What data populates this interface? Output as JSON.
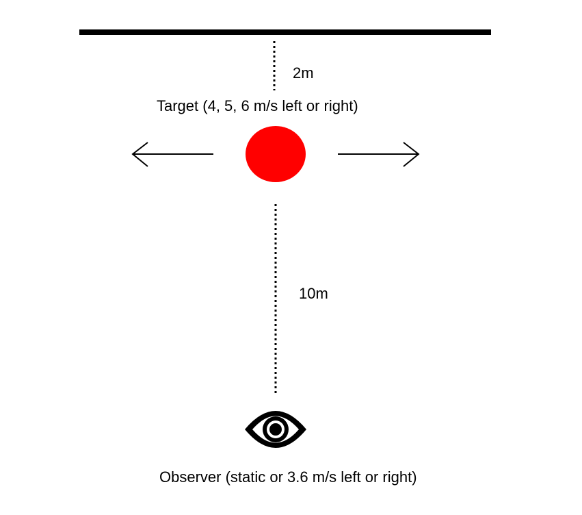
{
  "labels": {
    "top_distance": "2m",
    "target": "Target (4, 5, 6 m/s left or right)",
    "bottom_distance": "10m",
    "observer": "Observer (static or 3.6 m/s left or right)"
  },
  "colors": {
    "target": "#ff0000",
    "lines": "#000000",
    "background": "#ffffff"
  },
  "icons": {
    "observer": "eye-icon",
    "left_motion": "arrow-left-icon",
    "right_motion": "arrow-right-icon"
  }
}
